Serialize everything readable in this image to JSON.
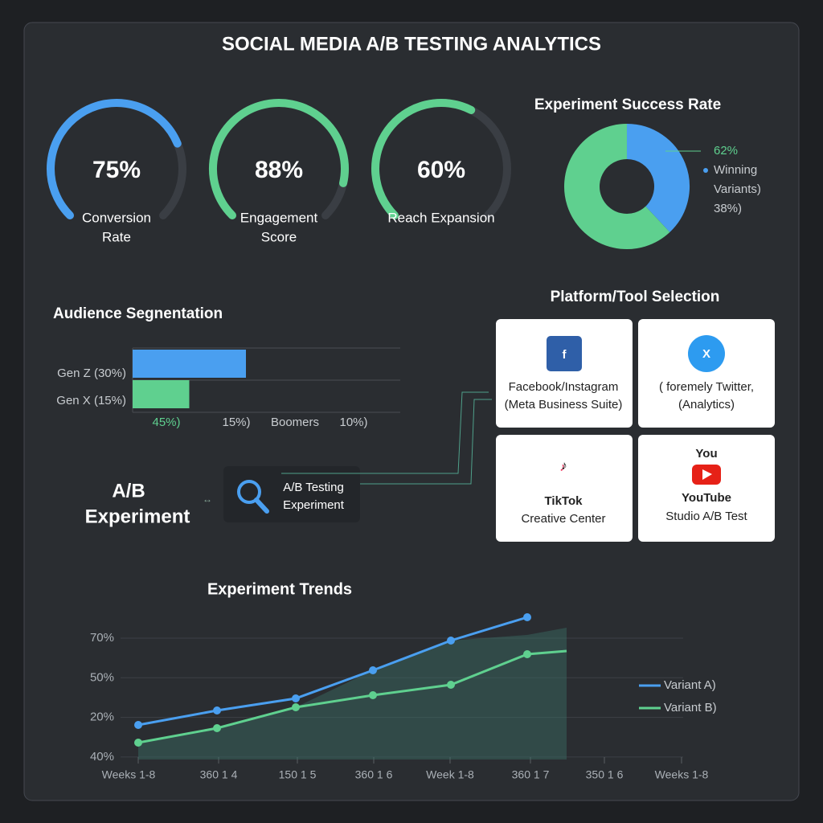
{
  "header": {
    "title": "SOCIAL MEDIA A/B TESTING ANALYTICS"
  },
  "gauges": [
    {
      "value": 75,
      "label": "75%",
      "caption": [
        "Conversion",
        "Rate"
      ],
      "color": "#4a9ff0"
    },
    {
      "value": 88,
      "label": "88%",
      "caption": [
        "Engagement",
        "Score"
      ],
      "color": "#5fd08f"
    },
    {
      "value": 60,
      "label": "60%",
      "caption": [
        "Reach Expansion"
      ],
      "color": "#5fd08f"
    }
  ],
  "success_rate": {
    "title": "Experiment Success Rate",
    "segments": [
      {
        "value": 62,
        "label": "62%",
        "color": "#5fd08f"
      },
      {
        "value": 38,
        "label": "38%)",
        "color": "#4a9ff0"
      }
    ],
    "legend": [
      "Winning",
      "Variants)"
    ]
  },
  "audience": {
    "title": "Audience Segnentation",
    "bars": [
      {
        "label": "Gen Z (30%)",
        "value": 30,
        "color": "#4a9ff0"
      },
      {
        "label": "Gen X (15%)",
        "value": 15,
        "color": "#5fd08f"
      }
    ],
    "axis_labels": [
      "45%)",
      "15%)",
      "Boomers",
      "10%)"
    ]
  },
  "experiment": {
    "title": [
      "A/B",
      "Experiment"
    ],
    "box": [
      "A/B Testing",
      "Experiment"
    ]
  },
  "platforms": {
    "title": "Platform/Tool Selection",
    "cards": [
      {
        "lines": [
          "Facebook/Instagram",
          "(Meta Business Suite)"
        ]
      },
      {
        "lines": [
          "( foremely Twitter,",
          "(Analytics)"
        ]
      },
      {
        "lines": [
          "TikTok",
          "Creative Center"
        ]
      },
      {
        "lines": [
          "You",
          "YouTube",
          "Studio A/B Test"
        ]
      }
    ]
  },
  "trends": {
    "title": "Experiment Trends",
    "y_labels": [
      "70%",
      "50%",
      "20%",
      "40%"
    ],
    "x_labels": [
      "Weeks 1-8",
      "360 1 4",
      "150 1 5",
      "360 1 6",
      "Week 1-8",
      "360 1 7",
      "350 1 6",
      "Weeks 1-8"
    ],
    "legend": [
      "Variant A)",
      "Variant B)"
    ]
  }
}
